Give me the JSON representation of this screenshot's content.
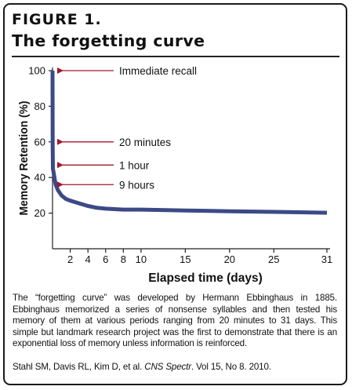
{
  "figure": {
    "label": "FIGURE 1.",
    "title": "The forgetting curve"
  },
  "chart_data": {
    "type": "line",
    "title": "The forgetting curve",
    "xlabel": "Elapsed time (days)",
    "ylabel": "Memory Retention (%)",
    "xlim": [
      0,
      31
    ],
    "ylim": [
      0,
      100
    ],
    "x_ticks": [
      2,
      4,
      6,
      8,
      10,
      15,
      20,
      25,
      31
    ],
    "y_ticks": [
      20,
      40,
      60,
      80,
      100
    ],
    "grid": false,
    "series": [
      {
        "color": "#3b4a86",
        "x": [
          0.0,
          0.014,
          0.042,
          0.35,
          0.6,
          1,
          1.5,
          2,
          3,
          4,
          5,
          6,
          8,
          10,
          15,
          20,
          25,
          31
        ],
        "y": [
          100,
          58,
          45,
          36,
          33,
          30,
          28,
          27,
          25.5,
          24,
          23,
          22.5,
          22,
          22,
          21.5,
          21,
          20.7,
          20.2
        ]
      }
    ],
    "annotations": [
      {
        "text": "Immediate recall",
        "y": 100
      },
      {
        "text": "20 minutes",
        "y": 60
      },
      {
        "text": "1 hour",
        "y": 47
      },
      {
        "text": "9 hours",
        "y": 36
      }
    ],
    "annotation_color": "#a4162e"
  },
  "caption": "The “forgetting curve” was developed by Hermann Ebbinghaus in 1885. Ebbinghaus memorized a series of nonsense syllables and then tested his memory of them at various periods ranging from 20 minutes to 31 days.  This simple but landmark research project was the first to demonstrate that there is an exponential loss of memory unless information is reinforced.",
  "citation": {
    "authors": "Stahl SM, Davis RL, Kim D, et al. ",
    "journal": "CNS Spectr",
    "rest": ". Vol 15, No 8. 2010."
  }
}
